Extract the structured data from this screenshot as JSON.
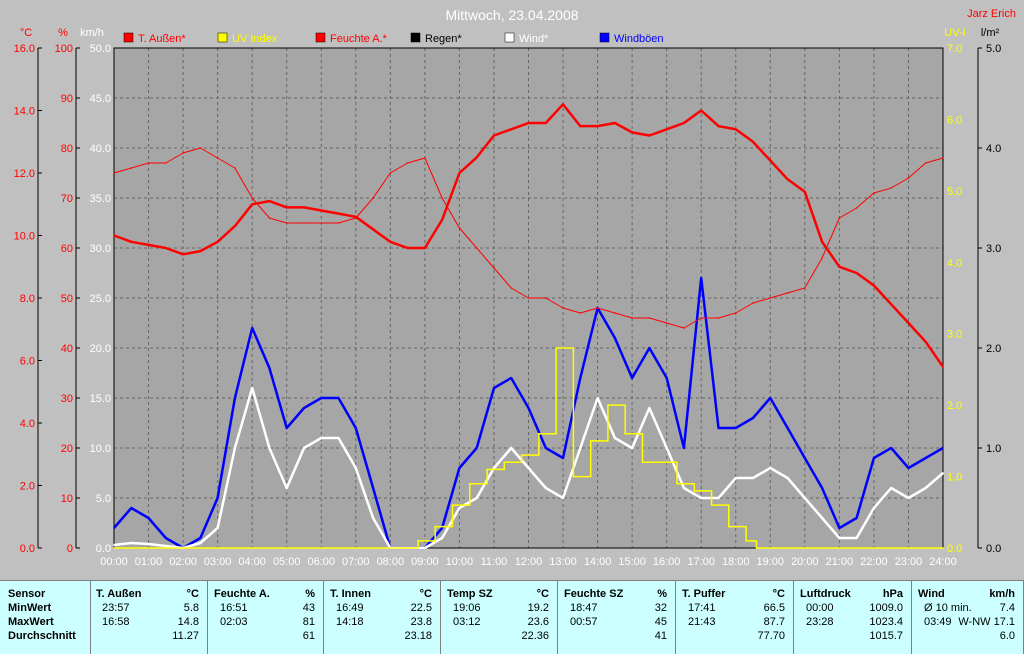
{
  "title": "Mittwoch, 23.04.2008",
  "author": "Jarz Erich",
  "colors": {
    "bg": "#a6a6a6",
    "temp": "#ff0000",
    "hum": "#ff0000",
    "uv": "#ffff00",
    "rain": "#000000",
    "wind": "#ffffff",
    "gust": "#0000ff",
    "axisRed": "#ff0000",
    "axisUV": "#ffff00"
  },
  "chart_data": {
    "type": "line",
    "title": "Mittwoch, 23.04.2008",
    "x_ticks": [
      "00:00",
      "01:00",
      "02:00",
      "03:00",
      "04:00",
      "05:00",
      "06:00",
      "07:00",
      "08:00",
      "09:00",
      "10:00",
      "11:00",
      "12:00",
      "13:00",
      "14:00",
      "15:00",
      "16:00",
      "17:00",
      "18:00",
      "19:00",
      "20:00",
      "21:00",
      "22:00",
      "23:00",
      "24:00"
    ],
    "axes": {
      "temp": {
        "unit": "°C",
        "ticks": [
          "16.0",
          "14.0",
          "12.0",
          "10.0",
          "8.0",
          "6.0",
          "4.0",
          "2.0",
          "0.0"
        ],
        "range": [
          0,
          16
        ]
      },
      "hum": {
        "unit": "%",
        "ticks": [
          "100",
          "90",
          "80",
          "70",
          "60",
          "50",
          "40",
          "30",
          "20",
          "10",
          "0"
        ],
        "range": [
          0,
          100
        ]
      },
      "wind": {
        "unit": "km/h",
        "ticks": [
          "50.0",
          "45.0",
          "40.0",
          "35.0",
          "30.0",
          "25.0",
          "20.0",
          "15.0",
          "10.0",
          "5.0",
          "0.0"
        ],
        "range": [
          0,
          50
        ]
      },
      "uv": {
        "unit": "UV-I",
        "ticks": [
          "7.0",
          "6.0",
          "5.0",
          "4.0",
          "3.0",
          "2.0",
          "1.0",
          "0.0"
        ],
        "range": [
          0,
          7
        ]
      },
      "rain": {
        "unit": "l/m²",
        "ticks": [
          "5.0",
          "4.0",
          "3.0",
          "2.0",
          "1.0",
          "0.0"
        ],
        "range": [
          0,
          5
        ]
      }
    },
    "legend": [
      "T. Außen*",
      "UV Index",
      "Feuchte A.*",
      "Regen*",
      "Wind*",
      "Windböen"
    ],
    "series": [
      {
        "name": "T. Außen*",
        "axis": "temp",
        "x": [
          0,
          0.5,
          1,
          1.5,
          2,
          2.5,
          3,
          3.5,
          4,
          4.5,
          5,
          5.5,
          6,
          6.5,
          7,
          7.5,
          8,
          8.5,
          9,
          9.5,
          10,
          10.5,
          11,
          11.5,
          12,
          12.5,
          13,
          13.5,
          14,
          14.5,
          15,
          15.5,
          16,
          16.5,
          17,
          17.5,
          18,
          18.5,
          19,
          19.5,
          20,
          20.5,
          21,
          21.5,
          22,
          22.5,
          23,
          23.5,
          24
        ],
        "y": [
          10.0,
          9.8,
          9.7,
          9.6,
          9.4,
          9.5,
          9.8,
          10.3,
          11.0,
          11.1,
          10.9,
          10.9,
          10.8,
          10.7,
          10.6,
          10.2,
          9.8,
          9.6,
          9.6,
          10.5,
          12.0,
          12.5,
          13.2,
          13.4,
          13.6,
          13.6,
          14.2,
          13.5,
          13.5,
          13.6,
          13.3,
          13.2,
          13.4,
          13.6,
          14.0,
          13.5,
          13.4,
          13.0,
          12.4,
          11.8,
          11.4,
          9.8,
          9.0,
          8.8,
          8.4,
          7.8,
          7.2,
          6.6,
          5.8
        ]
      },
      {
        "name": "Feuchte A.*",
        "axis": "hum",
        "x": [
          0,
          0.5,
          1,
          1.5,
          2,
          2.5,
          3,
          3.5,
          4,
          4.5,
          5,
          5.5,
          6,
          6.5,
          7,
          7.5,
          8,
          8.5,
          9,
          9.5,
          10,
          10.5,
          11,
          11.5,
          12,
          12.5,
          13,
          13.5,
          14,
          14.5,
          15,
          15.5,
          16,
          16.5,
          17,
          17.5,
          18,
          18.5,
          19,
          19.5,
          20,
          20.5,
          21,
          21.5,
          22,
          22.5,
          23,
          23.5,
          24
        ],
        "y": [
          75,
          76,
          77,
          77,
          79,
          80,
          78,
          76,
          70,
          66,
          65,
          65,
          65,
          65,
          66,
          70,
          75,
          77,
          78,
          70,
          64,
          60,
          56,
          52,
          50,
          50,
          48,
          47,
          48,
          47,
          46,
          46,
          45,
          44,
          46,
          46,
          47,
          49,
          50,
          51,
          52,
          58,
          66,
          68,
          71,
          72,
          74,
          77,
          78
        ]
      },
      {
        "name": "UV Index",
        "axis": "uv",
        "x": [
          0,
          8.2,
          8.8,
          9.3,
          9.8,
          10.3,
          10.8,
          11.3,
          11.8,
          12.3,
          12.8,
          13.3,
          13.8,
          14.3,
          14.8,
          15.3,
          15.8,
          16.3,
          16.8,
          17.3,
          17.8,
          18.3,
          18.6,
          24
        ],
        "y": [
          0,
          0,
          0.1,
          0.3,
          0.6,
          0.9,
          1.1,
          1.2,
          1.3,
          1.6,
          2.8,
          1.0,
          1.5,
          2.0,
          1.6,
          1.2,
          1.2,
          0.9,
          0.8,
          0.6,
          0.3,
          0.1,
          0,
          0
        ]
      },
      {
        "name": "Wind*",
        "axis": "wind",
        "x": [
          0,
          0.5,
          1,
          1.5,
          2,
          2.5,
          3,
          3.5,
          4,
          4.5,
          5,
          5.5,
          6,
          6.5,
          7,
          7.5,
          8,
          8.5,
          9,
          9.5,
          10,
          10.5,
          11,
          11.5,
          12,
          12.5,
          13,
          13.5,
          14,
          14.5,
          15,
          15.5,
          16,
          16.5,
          17,
          17.5,
          18,
          18.5,
          19,
          19.5,
          20,
          20.5,
          21,
          21.5,
          22,
          22.5,
          23,
          23.5,
          24
        ],
        "y": [
          0.3,
          0.5,
          0.4,
          0.2,
          0,
          0.5,
          2.0,
          10,
          16,
          10,
          6,
          10,
          11,
          11,
          8,
          3,
          0,
          0,
          0,
          1,
          4,
          5,
          8,
          10,
          8,
          6,
          5,
          10,
          15,
          11,
          10,
          14,
          10,
          6,
          5,
          5,
          7,
          7,
          8,
          7,
          5,
          3,
          1,
          1,
          4,
          6,
          5,
          6,
          7.5
        ]
      },
      {
        "name": "Windböen",
        "axis": "wind",
        "x": [
          0,
          0.5,
          1,
          1.5,
          2,
          2.5,
          3,
          3.5,
          4,
          4.5,
          5,
          5.5,
          6,
          6.5,
          7,
          7.5,
          8,
          8.5,
          9,
          9.5,
          10,
          10.5,
          11,
          11.5,
          12,
          12.5,
          13,
          13.5,
          14,
          14.5,
          15,
          15.5,
          16,
          16.5,
          17,
          17.5,
          18,
          18.5,
          19,
          19.5,
          20,
          20.5,
          21,
          21.5,
          22,
          22.5,
          23,
          23.5,
          24
        ],
        "y": [
          2,
          4,
          3,
          1,
          0,
          1,
          5,
          15,
          22,
          18,
          12,
          14,
          15,
          15,
          12,
          6,
          0,
          0,
          0,
          2,
          8,
          10,
          16,
          17,
          14,
          10,
          9,
          17,
          24,
          21,
          17,
          20,
          17,
          10,
          27,
          12,
          12,
          13,
          15,
          12,
          9,
          6,
          2,
          3,
          9,
          10,
          8,
          9,
          10
        ]
      }
    ]
  },
  "stats": {
    "sensor": {
      "label": "Sensor",
      "min": "MinWert",
      "max": "MaxWert",
      "avg": "Durchschnitt"
    },
    "columns": [
      {
        "name": "T. Außen",
        "unit": "°C",
        "min_time": "23:57",
        "min_val": "5.8",
        "max_time": "16:58",
        "max_val": "14.8",
        "avg": "11.27"
      },
      {
        "name": "Feuchte A.",
        "unit": "%",
        "min_time": "16:51",
        "min_val": "43",
        "max_time": "02:03",
        "max_val": "81",
        "avg": "61"
      },
      {
        "name": "T. Innen",
        "unit": "°C",
        "min_time": "16:49",
        "min_val": "22.5",
        "max_time": "14:18",
        "max_val": "23.8",
        "avg": "23.18"
      },
      {
        "name": "Temp SZ",
        "unit": "°C",
        "min_time": "19:06",
        "min_val": "19.2",
        "max_time": "03:12",
        "max_val": "23.6",
        "avg": "22.36"
      },
      {
        "name": "Feuchte SZ",
        "unit": "%",
        "min_time": "18:47",
        "min_val": "32",
        "max_time": "00:57",
        "max_val": "45",
        "avg": "41"
      },
      {
        "name": "T. Puffer",
        "unit": "°C",
        "min_time": "17:41",
        "min_val": "66.5",
        "max_time": "21:43",
        "max_val": "87.7",
        "avg": "77.70"
      },
      {
        "name": "Luftdruck",
        "unit": "hPa",
        "min_time": "00:00",
        "min_val": "1009.0",
        "max_time": "23:28",
        "max_val": "1023.4",
        "avg": "1015.7"
      },
      {
        "name": "Wind",
        "unit": "km/h",
        "min_time": "Ø 10 min.",
        "min_val": "7.4",
        "max_time": "03:49",
        "max_val": "W-NW 17.1",
        "avg": "6.0"
      }
    ]
  }
}
